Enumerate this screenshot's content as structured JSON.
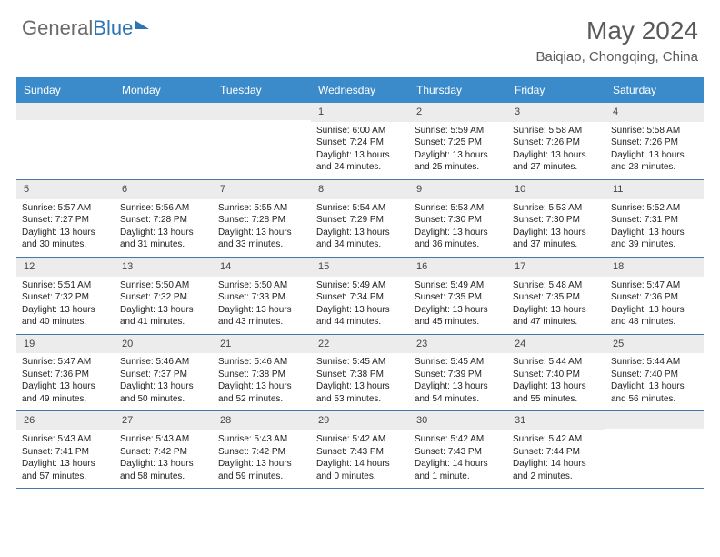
{
  "logo": {
    "text1": "General",
    "text2": "Blue"
  },
  "title": "May 2024",
  "location": "Baiqiao, Chongqing, China",
  "colors": {
    "header_bg": "#3b8bca",
    "header_text": "#ffffff",
    "daynum_bg": "#ececec",
    "border": "#4478a8",
    "logo_gray": "#6a6a6a",
    "logo_blue": "#2e74b5"
  },
  "weekdays": [
    "Sunday",
    "Monday",
    "Tuesday",
    "Wednesday",
    "Thursday",
    "Friday",
    "Saturday"
  ],
  "weeks": [
    [
      {
        "n": "",
        "sr": "",
        "ss": "",
        "d1": "",
        "d2": ""
      },
      {
        "n": "",
        "sr": "",
        "ss": "",
        "d1": "",
        "d2": ""
      },
      {
        "n": "",
        "sr": "",
        "ss": "",
        "d1": "",
        "d2": ""
      },
      {
        "n": "1",
        "sr": "Sunrise: 6:00 AM",
        "ss": "Sunset: 7:24 PM",
        "d1": "Daylight: 13 hours",
        "d2": "and 24 minutes."
      },
      {
        "n": "2",
        "sr": "Sunrise: 5:59 AM",
        "ss": "Sunset: 7:25 PM",
        "d1": "Daylight: 13 hours",
        "d2": "and 25 minutes."
      },
      {
        "n": "3",
        "sr": "Sunrise: 5:58 AM",
        "ss": "Sunset: 7:26 PM",
        "d1": "Daylight: 13 hours",
        "d2": "and 27 minutes."
      },
      {
        "n": "4",
        "sr": "Sunrise: 5:58 AM",
        "ss": "Sunset: 7:26 PM",
        "d1": "Daylight: 13 hours",
        "d2": "and 28 minutes."
      }
    ],
    [
      {
        "n": "5",
        "sr": "Sunrise: 5:57 AM",
        "ss": "Sunset: 7:27 PM",
        "d1": "Daylight: 13 hours",
        "d2": "and 30 minutes."
      },
      {
        "n": "6",
        "sr": "Sunrise: 5:56 AM",
        "ss": "Sunset: 7:28 PM",
        "d1": "Daylight: 13 hours",
        "d2": "and 31 minutes."
      },
      {
        "n": "7",
        "sr": "Sunrise: 5:55 AM",
        "ss": "Sunset: 7:28 PM",
        "d1": "Daylight: 13 hours",
        "d2": "and 33 minutes."
      },
      {
        "n": "8",
        "sr": "Sunrise: 5:54 AM",
        "ss": "Sunset: 7:29 PM",
        "d1": "Daylight: 13 hours",
        "d2": "and 34 minutes."
      },
      {
        "n": "9",
        "sr": "Sunrise: 5:53 AM",
        "ss": "Sunset: 7:30 PM",
        "d1": "Daylight: 13 hours",
        "d2": "and 36 minutes."
      },
      {
        "n": "10",
        "sr": "Sunrise: 5:53 AM",
        "ss": "Sunset: 7:30 PM",
        "d1": "Daylight: 13 hours",
        "d2": "and 37 minutes."
      },
      {
        "n": "11",
        "sr": "Sunrise: 5:52 AM",
        "ss": "Sunset: 7:31 PM",
        "d1": "Daylight: 13 hours",
        "d2": "and 39 minutes."
      }
    ],
    [
      {
        "n": "12",
        "sr": "Sunrise: 5:51 AM",
        "ss": "Sunset: 7:32 PM",
        "d1": "Daylight: 13 hours",
        "d2": "and 40 minutes."
      },
      {
        "n": "13",
        "sr": "Sunrise: 5:50 AM",
        "ss": "Sunset: 7:32 PM",
        "d1": "Daylight: 13 hours",
        "d2": "and 41 minutes."
      },
      {
        "n": "14",
        "sr": "Sunrise: 5:50 AM",
        "ss": "Sunset: 7:33 PM",
        "d1": "Daylight: 13 hours",
        "d2": "and 43 minutes."
      },
      {
        "n": "15",
        "sr": "Sunrise: 5:49 AM",
        "ss": "Sunset: 7:34 PM",
        "d1": "Daylight: 13 hours",
        "d2": "and 44 minutes."
      },
      {
        "n": "16",
        "sr": "Sunrise: 5:49 AM",
        "ss": "Sunset: 7:35 PM",
        "d1": "Daylight: 13 hours",
        "d2": "and 45 minutes."
      },
      {
        "n": "17",
        "sr": "Sunrise: 5:48 AM",
        "ss": "Sunset: 7:35 PM",
        "d1": "Daylight: 13 hours",
        "d2": "and 47 minutes."
      },
      {
        "n": "18",
        "sr": "Sunrise: 5:47 AM",
        "ss": "Sunset: 7:36 PM",
        "d1": "Daylight: 13 hours",
        "d2": "and 48 minutes."
      }
    ],
    [
      {
        "n": "19",
        "sr": "Sunrise: 5:47 AM",
        "ss": "Sunset: 7:36 PM",
        "d1": "Daylight: 13 hours",
        "d2": "and 49 minutes."
      },
      {
        "n": "20",
        "sr": "Sunrise: 5:46 AM",
        "ss": "Sunset: 7:37 PM",
        "d1": "Daylight: 13 hours",
        "d2": "and 50 minutes."
      },
      {
        "n": "21",
        "sr": "Sunrise: 5:46 AM",
        "ss": "Sunset: 7:38 PM",
        "d1": "Daylight: 13 hours",
        "d2": "and 52 minutes."
      },
      {
        "n": "22",
        "sr": "Sunrise: 5:45 AM",
        "ss": "Sunset: 7:38 PM",
        "d1": "Daylight: 13 hours",
        "d2": "and 53 minutes."
      },
      {
        "n": "23",
        "sr": "Sunrise: 5:45 AM",
        "ss": "Sunset: 7:39 PM",
        "d1": "Daylight: 13 hours",
        "d2": "and 54 minutes."
      },
      {
        "n": "24",
        "sr": "Sunrise: 5:44 AM",
        "ss": "Sunset: 7:40 PM",
        "d1": "Daylight: 13 hours",
        "d2": "and 55 minutes."
      },
      {
        "n": "25",
        "sr": "Sunrise: 5:44 AM",
        "ss": "Sunset: 7:40 PM",
        "d1": "Daylight: 13 hours",
        "d2": "and 56 minutes."
      }
    ],
    [
      {
        "n": "26",
        "sr": "Sunrise: 5:43 AM",
        "ss": "Sunset: 7:41 PM",
        "d1": "Daylight: 13 hours",
        "d2": "and 57 minutes."
      },
      {
        "n": "27",
        "sr": "Sunrise: 5:43 AM",
        "ss": "Sunset: 7:42 PM",
        "d1": "Daylight: 13 hours",
        "d2": "and 58 minutes."
      },
      {
        "n": "28",
        "sr": "Sunrise: 5:43 AM",
        "ss": "Sunset: 7:42 PM",
        "d1": "Daylight: 13 hours",
        "d2": "and 59 minutes."
      },
      {
        "n": "29",
        "sr": "Sunrise: 5:42 AM",
        "ss": "Sunset: 7:43 PM",
        "d1": "Daylight: 14 hours",
        "d2": "and 0 minutes."
      },
      {
        "n": "30",
        "sr": "Sunrise: 5:42 AM",
        "ss": "Sunset: 7:43 PM",
        "d1": "Daylight: 14 hours",
        "d2": "and 1 minute."
      },
      {
        "n": "31",
        "sr": "Sunrise: 5:42 AM",
        "ss": "Sunset: 7:44 PM",
        "d1": "Daylight: 14 hours",
        "d2": "and 2 minutes."
      },
      {
        "n": "",
        "sr": "",
        "ss": "",
        "d1": "",
        "d2": ""
      }
    ]
  ]
}
